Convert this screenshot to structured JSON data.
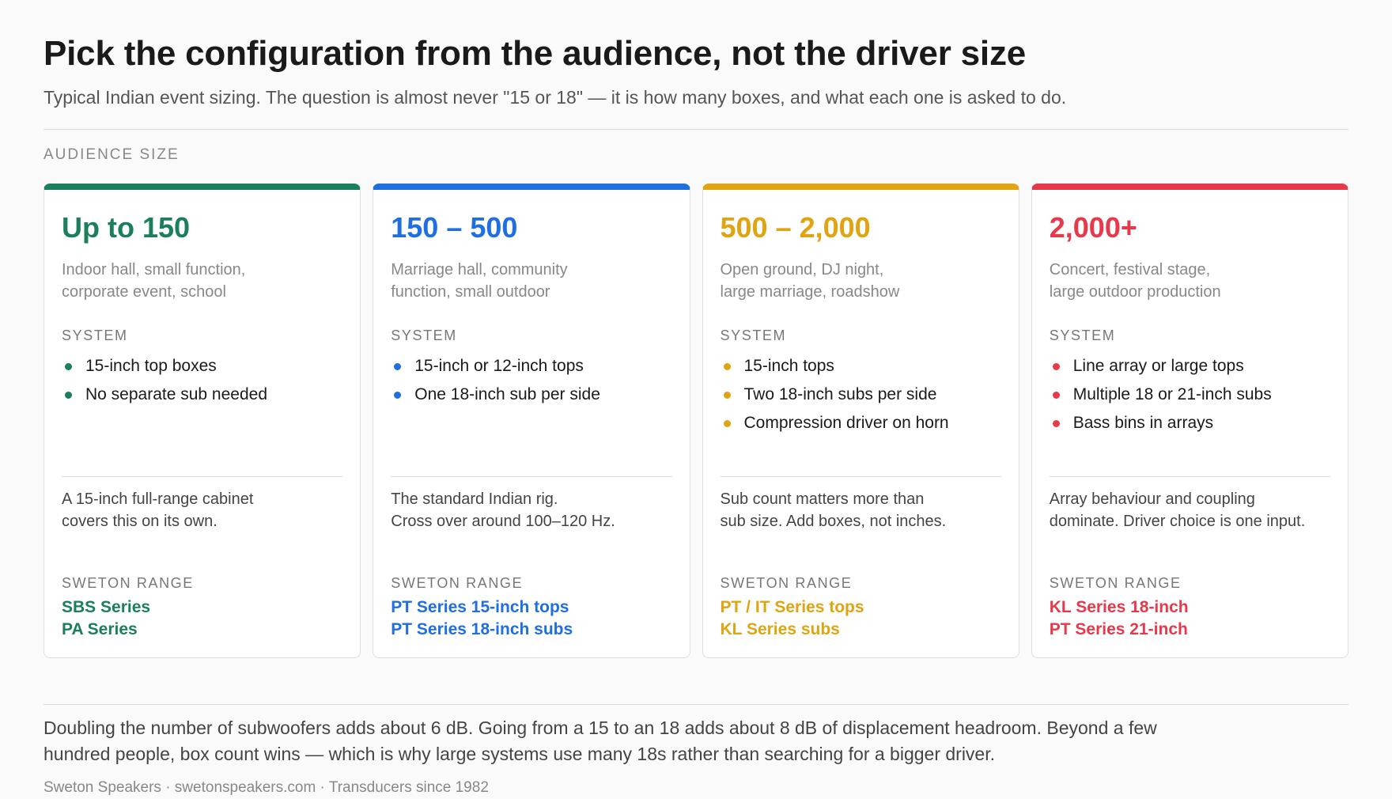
{
  "header": {
    "title": "Pick the configuration from the audience, not the driver size",
    "subtitle": "Typical Indian event sizing. The question is almost never \"15 or 18\" — it is how many boxes, and what each one is asked to do."
  },
  "section_label": "AUDIENCE SIZE",
  "labels": {
    "system": "SYSTEM",
    "range": "SWETON RANGE"
  },
  "cards": [
    {
      "heading": "Up to 150",
      "accent": "#1a7f5a",
      "desc": [
        "Indoor hall, small function,",
        "corporate event, school"
      ],
      "system": [
        "15-inch top boxes",
        "No separate sub needed"
      ],
      "note": [
        "A 15-inch full-range cabinet",
        "covers this on its own."
      ],
      "range": [
        "SBS Series",
        "PA Series"
      ]
    },
    {
      "heading": "150 – 500",
      "accent": "#1f6fe0",
      "desc": [
        "Marriage hall, community",
        "function, small outdoor"
      ],
      "system": [
        "15-inch or 12-inch tops",
        "One 18-inch sub per side"
      ],
      "note": [
        "The standard Indian rig.",
        "Cross over around 100–120 Hz."
      ],
      "range": [
        "PT Series 15-inch tops",
        "PT Series 18-inch subs"
      ]
    },
    {
      "heading": "500 – 2,000",
      "accent": "#e0a412",
      "desc": [
        "Open ground, DJ night,",
        "large marriage, roadshow"
      ],
      "system": [
        "15-inch tops",
        "Two 18-inch subs per side",
        "Compression driver on horn"
      ],
      "note": [
        "Sub count matters more than",
        "sub size. Add boxes, not inches."
      ],
      "range": [
        "PT / IT Series tops",
        "KL Series subs"
      ]
    },
    {
      "heading": "2,000+",
      "accent": "#e8394a",
      "desc": [
        "Concert, festival stage,",
        "large outdoor production"
      ],
      "system": [
        "Line array or large tops",
        "Multiple 18 or 21-inch subs",
        "Bass bins in arrays"
      ],
      "note": [
        "Array behaviour and coupling",
        "dominate. Driver choice is one input."
      ],
      "range": [
        "KL Series 18-inch",
        "PT Series 21-inch"
      ]
    }
  ],
  "footnote": "Doubling the number of subwoofers adds about 6 dB. Going from a 15 to an 18 adds about 8 dB of displacement headroom. Beyond a few hundred people, box count wins — which is why large systems use many 18s rather than searching for a bigger driver.",
  "credit": "Sweton Speakers · swetonspeakers.com · Transducers since 1982"
}
